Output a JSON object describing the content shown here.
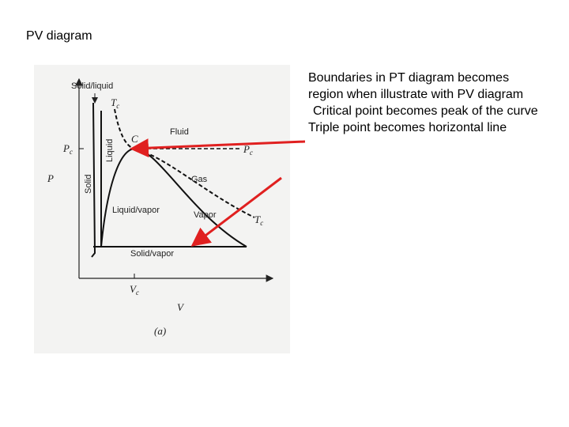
{
  "title": "PV diagram",
  "bullets": [
    "Boundaries in PT diagram becomes region when illustrate with PV diagram",
    "Critical point becomes peak of the curve",
    "Triple point becomes horizontal line"
  ],
  "diagram": {
    "solid_liquid": "Solid/liquid",
    "tc_top": {
      "base": "T",
      "sub": "c"
    },
    "fluid": "Fluid",
    "liquid": "Liquid",
    "critical": "C",
    "pc_axis": {
      "base": "P",
      "sub": "c"
    },
    "p_axis": "P",
    "solid": "Solid",
    "pc_right": {
      "base": "P",
      "sub": "c"
    },
    "gas": "Gas",
    "liquid_vapor": "Liquid/vapor",
    "vapor": "Vapor",
    "tc_right": {
      "base": "T",
      "sub": "c"
    },
    "solid_vapor": "Solid/vapor",
    "vc_axis": {
      "base": "V",
      "sub": "c"
    },
    "v_axis": "V",
    "caption": "(a)"
  }
}
